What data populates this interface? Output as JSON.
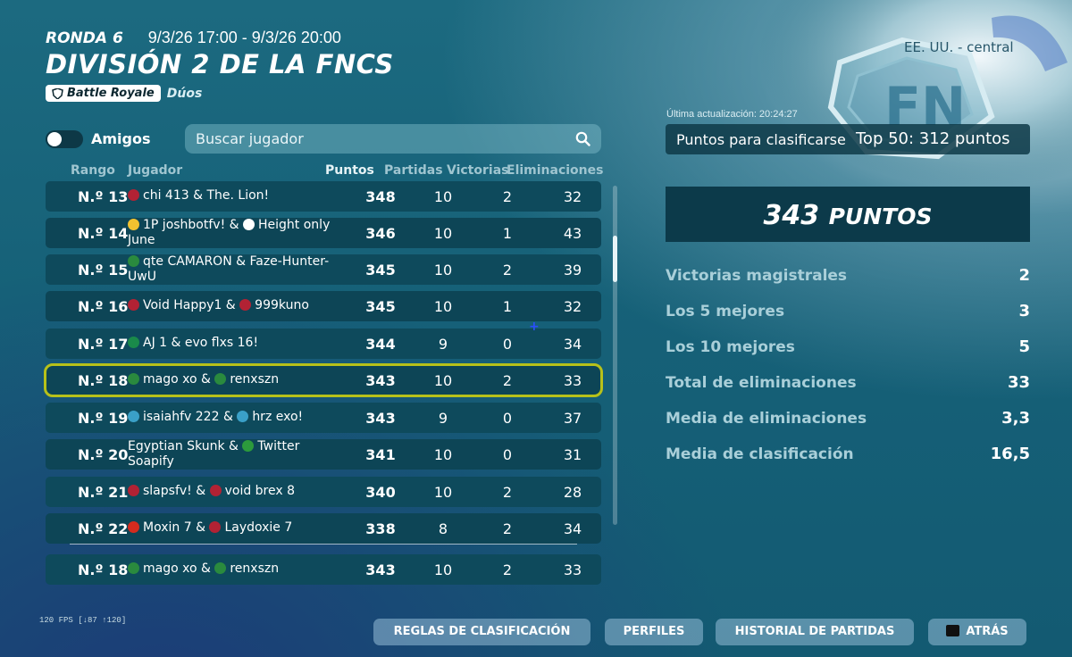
{
  "header": {
    "round_label": "RONDA 6",
    "round_dates": "9/3/26 17:00 - 9/3/26 20:00",
    "title": "DIVISIÓN 2 DE LA FNCS",
    "mode_badge": "Battle Royale",
    "mode_sub": "Dúos",
    "region": "EE. UU. - central"
  },
  "filters": {
    "friends_label": "Amigos",
    "friends_toggle_on": false,
    "search_placeholder": "Buscar jugador"
  },
  "table": {
    "columns": [
      "Rango",
      "Jugador",
      "Puntos",
      "Partidas",
      "Victorias",
      "Eliminaciones"
    ],
    "rows": [
      {
        "rank": "N.º 13",
        "flag1": "#b22234",
        "p1": "chi 413 & The. Lion!",
        "points": "348",
        "matches": "10",
        "wins": "2",
        "elims": "32"
      },
      {
        "rank": "N.º 14",
        "flag1": "#f2c230",
        "flag2": "#ffffff",
        "p1": "1P joshbotfv! & ",
        "p2": "Height only June",
        "points": "346",
        "matches": "10",
        "wins": "1",
        "elims": "43"
      },
      {
        "rank": "N.º 15",
        "flag1": "#2a8a3e",
        "p1": "qte CAMARON & Faze-Hunter-UwU",
        "points": "345",
        "matches": "10",
        "wins": "2",
        "elims": "39"
      },
      {
        "rank": "N.º 16",
        "flag1": "#b22234",
        "flag2": "#b22234",
        "p1": "Void Happy1 & ",
        "p2": "999kuno",
        "points": "345",
        "matches": "10",
        "wins": "1",
        "elims": "32"
      },
      {
        "rank": "N.º 17",
        "flag1": "#1a8a4a",
        "p1": "AJ 1 & evo flxs 16!",
        "points": "344",
        "matches": "9",
        "wins": "0",
        "elims": "34"
      },
      {
        "rank": "N.º 18",
        "flag1": "#2a8a3e",
        "flag2": "#2a8a3e",
        "p1": "mago xo & ",
        "p2": "renxszn",
        "points": "343",
        "matches": "10",
        "wins": "2",
        "elims": "33",
        "highlight": true
      },
      {
        "rank": "N.º 19",
        "flag1": "#3aa0c8",
        "flag2": "#3aa0c8",
        "p1": "isaiahfv 222 & ",
        "p2": "hrz exo!",
        "points": "343",
        "matches": "9",
        "wins": "0",
        "elims": "37"
      },
      {
        "rank": "N.º 20",
        "flag2": "#2c9a3c",
        "p1": "Egyptian Skunk & ",
        "p2": "Twitter Soapify",
        "points": "341",
        "matches": "10",
        "wins": "0",
        "elims": "31"
      },
      {
        "rank": "N.º 21",
        "flag1": "#b22234",
        "flag2": "#b22234",
        "p1": "slapsfv! & ",
        "p2": "void brex 8",
        "points": "340",
        "matches": "10",
        "wins": "2",
        "elims": "28"
      },
      {
        "rank": "N.º 22",
        "flag1": "#d52b1e",
        "flag2": "#b22234",
        "p1": "Moxin 7 & ",
        "p2": "Laydoxie 7",
        "points": "338",
        "matches": "8",
        "wins": "2",
        "elims": "34"
      }
    ],
    "self_row": {
      "rank": "N.º 18",
      "flag1": "#2a8a3e",
      "flag2": "#2a8a3e",
      "p1": "mago xo & ",
      "p2": "renxszn",
      "points": "343",
      "matches": "10",
      "wins": "2",
      "elims": "33"
    }
  },
  "summary": {
    "last_update": "Última actualización: 20:24:27",
    "qualify_label": "Puntos para clasificarse",
    "qualify_value": "Top 50: 312 puntos",
    "points_value": "343",
    "points_unit": "PUNTOS",
    "stats": [
      {
        "label": "Victorias magistrales",
        "value": "2"
      },
      {
        "label": "Los 5 mejores",
        "value": "3"
      },
      {
        "label": "Los 10 mejores",
        "value": "5"
      },
      {
        "label": "Total de eliminaciones",
        "value": "33"
      },
      {
        "label": "Media de eliminaciones",
        "value": "3,3"
      },
      {
        "label": "Media de clasificación",
        "value": "16,5"
      }
    ]
  },
  "footer": {
    "fps": "120 FPS [↓87 ↑120]",
    "buttons": [
      "REGLAS DE CLASIFICACIÓN",
      "PERFILES",
      "HISTORIAL DE PARTIDAS",
      "ATRÁS"
    ]
  }
}
